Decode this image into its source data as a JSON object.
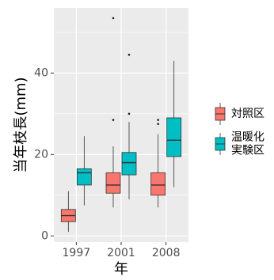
{
  "chart_data": {
    "type": "box",
    "xlabel": "年",
    "ylabel": "当年枝長(mm)",
    "categories": [
      "1997",
      "2001",
      "2008"
    ],
    "ylim": [
      -1.5,
      56
    ],
    "yticks": [
      0,
      20,
      40
    ],
    "grid": true,
    "legend_position": "right",
    "series": [
      {
        "name": "対照区",
        "color": "#F8766D",
        "boxes": [
          {
            "category": "1997",
            "min": 1,
            "q1": 3.5,
            "median": 5,
            "q3": 6.5,
            "max": 11,
            "outliers": []
          },
          {
            "category": "2001",
            "min": 7,
            "q1": 10.5,
            "median": 12.5,
            "q3": 15.5,
            "max": 22,
            "outliers": [
              28.5,
              53.5
            ]
          },
          {
            "category": "2008",
            "min": 7,
            "q1": 10,
            "median": 12.5,
            "q3": 15.5,
            "max": 25,
            "outliers": [
              27.5,
              28.5
            ]
          }
        ]
      },
      {
        "name": "温暖化\n実験区",
        "color": "#00BFC4",
        "boxes": [
          {
            "category": "1997",
            "min": 7.5,
            "q1": 12.5,
            "median": 15.5,
            "q3": 16.5,
            "max": 24.5,
            "outliers": []
          },
          {
            "category": "2001",
            "min": 9,
            "q1": 15,
            "median": 18,
            "q3": 20.5,
            "max": 28,
            "outliers": [
              30,
              44.5
            ]
          },
          {
            "category": "2008",
            "min": 12,
            "q1": 19.5,
            "median": 23.5,
            "q3": 29,
            "max": 43,
            "outliers": []
          }
        ]
      }
    ]
  }
}
